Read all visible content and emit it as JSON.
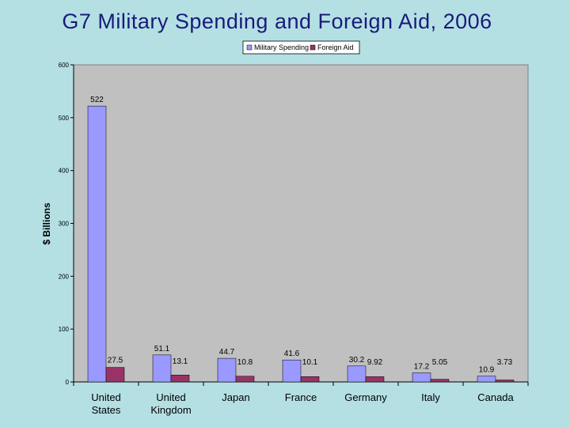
{
  "slide": {
    "title": "G7 Military Spending and Foreign Aid, 2006"
  },
  "colors": {
    "background": "#b4e0e4",
    "plot_area": "#c0c0c0",
    "military": "#9999ff",
    "aid": "#993366",
    "title": "#1a1a7a"
  },
  "chart_data": {
    "type": "bar",
    "title": "",
    "xlabel": "",
    "ylabel": "$ Billions",
    "ylim": [
      0,
      600
    ],
    "yticks": [
      0,
      100,
      200,
      300,
      400,
      500,
      600
    ],
    "grid": false,
    "legend_position": "top-center",
    "categories": [
      [
        "United",
        "States"
      ],
      [
        "United",
        "Kingdom"
      ],
      [
        "Japan"
      ],
      [
        "France"
      ],
      [
        "Germany"
      ],
      [
        "Italy"
      ],
      [
        "Canada"
      ]
    ],
    "series": [
      {
        "name": "Military Spending",
        "color": "#9999ff",
        "values": [
          522,
          51.1,
          44.7,
          41.6,
          30.2,
          17.2,
          10.9
        ],
        "labels": [
          "522",
          "51.1",
          "44.7",
          "41.6",
          "30.2",
          "17.2",
          "10.9"
        ]
      },
      {
        "name": "Foreign Aid",
        "color": "#993366",
        "values": [
          27.5,
          13.1,
          10.8,
          10.1,
          9.92,
          5.05,
          3.73
        ],
        "labels": [
          "27.5",
          "13.1",
          "10.8",
          "10.1",
          "9.92",
          "5.05",
          "3.73"
        ]
      }
    ]
  }
}
